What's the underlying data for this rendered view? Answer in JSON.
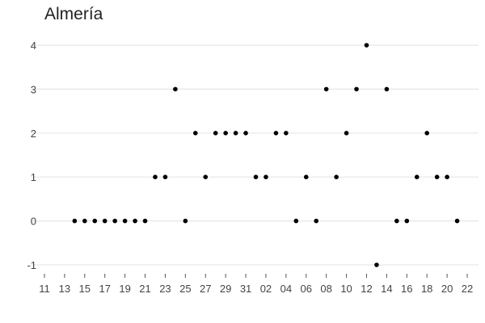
{
  "chart_data": {
    "type": "scatter",
    "title": "Almería",
    "xlabel": "",
    "ylabel": "",
    "ylim": [
      -1,
      4
    ],
    "grid": true,
    "y_ticks": [
      -1,
      0,
      1,
      2,
      3,
      4
    ],
    "x_ticks": [
      "11",
      "13",
      "15",
      "17",
      "19",
      "21",
      "23",
      "25",
      "27",
      "29",
      "31",
      "02",
      "04",
      "06",
      "08",
      "10",
      "12",
      "14",
      "16",
      "18",
      "20",
      "22"
    ],
    "x_tick_dates": [
      "2023-10-11",
      "2023-10-13",
      "2023-10-15",
      "2023-10-17",
      "2023-10-19",
      "2023-10-21",
      "2023-10-23",
      "2023-10-25",
      "2023-10-27",
      "2023-10-29",
      "2023-10-31",
      "2023-11-02",
      "2023-11-04",
      "2023-11-06",
      "2023-11-08",
      "2023-11-10",
      "2023-11-12",
      "2023-11-14",
      "2023-11-16",
      "2023-11-18",
      "2023-11-20",
      "2023-11-22"
    ],
    "points": [
      {
        "x": "2023-10-14",
        "y": 0
      },
      {
        "x": "2023-10-15",
        "y": 0
      },
      {
        "x": "2023-10-16",
        "y": 0
      },
      {
        "x": "2023-10-17",
        "y": 0
      },
      {
        "x": "2023-10-18",
        "y": 0
      },
      {
        "x": "2023-10-19",
        "y": 0
      },
      {
        "x": "2023-10-20",
        "y": 0
      },
      {
        "x": "2023-10-21",
        "y": 0
      },
      {
        "x": "2023-10-22",
        "y": 1
      },
      {
        "x": "2023-10-23",
        "y": 1
      },
      {
        "x": "2023-10-24",
        "y": 3
      },
      {
        "x": "2023-10-25",
        "y": 0
      },
      {
        "x": "2023-10-26",
        "y": 2
      },
      {
        "x": "2023-10-27",
        "y": 1
      },
      {
        "x": "2023-10-28",
        "y": 2
      },
      {
        "x": "2023-10-29",
        "y": 2
      },
      {
        "x": "2023-10-30",
        "y": 2
      },
      {
        "x": "2023-10-31",
        "y": 2
      },
      {
        "x": "2023-11-01",
        "y": 1
      },
      {
        "x": "2023-11-02",
        "y": 1
      },
      {
        "x": "2023-11-03",
        "y": 2
      },
      {
        "x": "2023-11-04",
        "y": 2
      },
      {
        "x": "2023-11-05",
        "y": 0
      },
      {
        "x": "2023-11-06",
        "y": 1
      },
      {
        "x": "2023-11-07",
        "y": 0
      },
      {
        "x": "2023-11-08",
        "y": 3
      },
      {
        "x": "2023-11-09",
        "y": 1
      },
      {
        "x": "2023-11-10",
        "y": 2
      },
      {
        "x": "2023-11-11",
        "y": 3
      },
      {
        "x": "2023-11-12",
        "y": 4
      },
      {
        "x": "2023-11-13",
        "y": -1
      },
      {
        "x": "2023-11-14",
        "y": 3
      },
      {
        "x": "2023-11-15",
        "y": 0
      },
      {
        "x": "2023-11-16",
        "y": 0
      },
      {
        "x": "2023-11-17",
        "y": 1
      },
      {
        "x": "2023-11-18",
        "y": 2
      },
      {
        "x": "2023-11-19",
        "y": 1
      },
      {
        "x": "2023-11-20",
        "y": 1
      },
      {
        "x": "2023-11-21",
        "y": 0
      }
    ],
    "colors": {
      "point": "#000000",
      "grid": "#e6e6e6",
      "tick_text": "#444444"
    }
  }
}
